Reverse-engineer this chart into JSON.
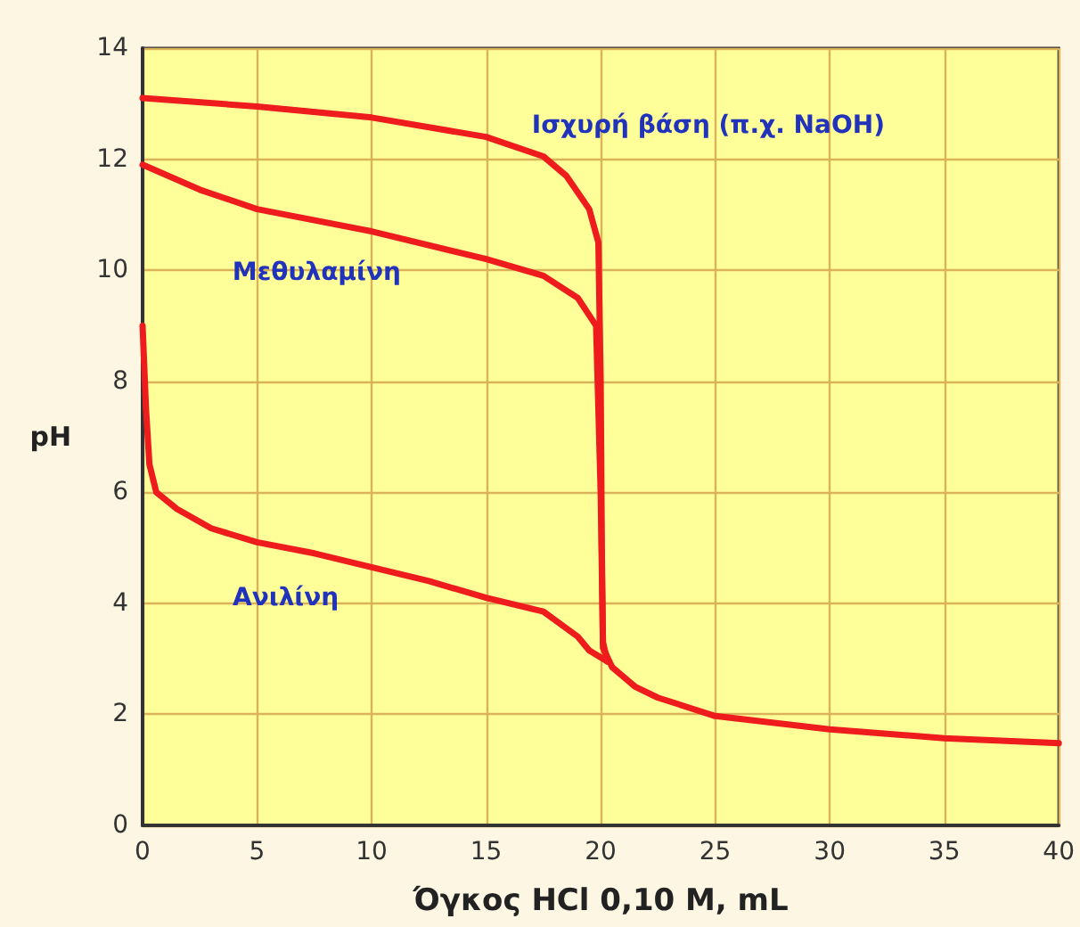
{
  "chart_data": {
    "type": "line",
    "xlabel": "Όγκος HCl 0,10 M, mL",
    "ylabel": "pH",
    "xlim": [
      0,
      40
    ],
    "xticks": [
      0,
      5,
      10,
      15,
      20,
      25,
      30,
      35,
      40
    ],
    "ylim": [
      0,
      14
    ],
    "yticks": [
      0,
      2,
      4,
      6,
      8,
      10,
      12,
      14
    ],
    "grid": true,
    "marker": "none",
    "line_style": "solid",
    "series": [
      {
        "name": "Ισχυρή βάση (π.χ. NaOH)",
        "color": "#ee1c1c",
        "x": [
          0,
          5,
          10,
          15,
          17.5,
          18.5,
          19.5,
          19.9,
          20,
          20.05,
          20.1,
          20.5,
          21.5,
          22.5,
          25,
          30,
          35,
          40
        ],
        "values": [
          13.1,
          12.95,
          12.75,
          12.4,
          12.05,
          11.7,
          11.1,
          10.5,
          8,
          5,
          3.2,
          2.85,
          2.5,
          2.3,
          1.97,
          1.73,
          1.57,
          1.48
        ]
      },
      {
        "name": "Μεθυλαμίνη",
        "color": "#ee1c1c",
        "x": [
          0,
          2.5,
          5,
          10,
          15,
          17.5,
          19,
          19.8,
          20,
          20.1,
          20.3
        ],
        "values": [
          11.9,
          11.45,
          11.1,
          10.7,
          10.2,
          9.9,
          9.5,
          9,
          6,
          3.3,
          2.95
        ]
      },
      {
        "name": "Ανιλίνη",
        "color": "#ee1c1c",
        "x": [
          0,
          0.15,
          0.3,
          0.6,
          1.5,
          3,
          5,
          7.5,
          10,
          12.5,
          15,
          17.5,
          19,
          19.5,
          20.3
        ],
        "values": [
          9,
          7.5,
          6.5,
          6,
          5.7,
          5.35,
          5.1,
          4.9,
          4.65,
          4.4,
          4.1,
          3.85,
          3.4,
          3.15,
          2.95
        ]
      }
    ]
  }
}
